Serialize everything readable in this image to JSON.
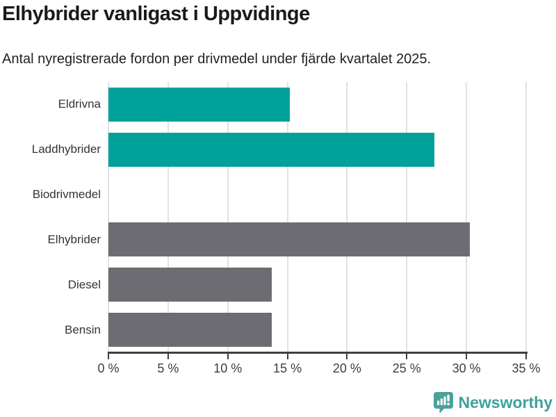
{
  "header": {
    "title": "Elhybrider vanligast i Uppvidinge",
    "subtitle": "Antal nyregistrerade fordon per drivmedel under fjärde kvartalet 2025."
  },
  "chart_data": {
    "type": "bar",
    "orientation": "horizontal",
    "title": "Elhybrider vanligast i Uppvidinge",
    "subtitle": "Antal nyregistrerade fordon per drivmedel under fjärde kvartalet 2025.",
    "categories": [
      "Eldrivna",
      "Laddhybrider",
      "Biodrivmedel",
      "Elhybrider",
      "Diesel",
      "Bensin"
    ],
    "values": [
      15.2,
      27.3,
      0,
      30.3,
      13.7,
      13.7
    ],
    "unit": "%",
    "xlabel": "",
    "ylabel": "",
    "xlim": [
      0,
      35
    ],
    "xtick_labels": [
      "0 %",
      "5 %",
      "10 %",
      "15 %",
      "20 %",
      "25 %",
      "30 %",
      "35 %"
    ],
    "grid": true,
    "legend": false,
    "bar_colors": [
      "#00a19a",
      "#00a19a",
      "#6c6c72",
      "#6c6c72",
      "#6c6c72",
      "#6c6c72"
    ]
  },
  "colors": {
    "highlight_teal": "#00a19a",
    "bar_gray": "#6c6c72",
    "gridline": "#e2e2e2",
    "axis": "#3f3f3f",
    "title_text": "#1a1a1a",
    "label_text": "#333333",
    "brand_teal": "#3fa19c"
  },
  "footer": {
    "brand": "Newsworthy"
  }
}
